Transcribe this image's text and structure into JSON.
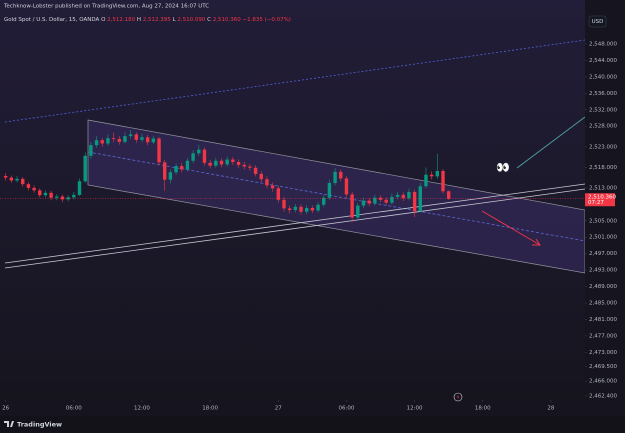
{
  "header": "Techknow-Lobster published on TradingView.com, Aug 27, 2024 16:07 UTC",
  "chart_data": {
    "type": "candlestick",
    "title": "Gold Spot / U.S. Dollar, 15, OANDA",
    "ohlc_legend": [
      {
        "key": "O",
        "label": "2,512.180"
      },
      {
        "key": "H",
        "label": "2,512.395"
      },
      {
        "key": "L",
        "label": "2,510.090"
      },
      {
        "key": "C",
        "label": "2,510.360"
      }
    ],
    "change_label": "−1.835 (−0.07%)",
    "currency": "USD",
    "x": [
      0,
      0.5,
      1,
      1.5,
      2,
      2.5,
      3,
      3.5,
      4,
      4.5,
      5,
      5.5,
      6,
      6.5,
      7,
      7.5,
      8,
      8.5,
      9,
      9.5,
      10,
      10.5,
      11,
      11.5,
      12,
      12.5,
      13,
      13.5,
      14,
      14.5,
      15,
      15.5,
      16,
      16.5,
      17,
      17.5,
      18,
      18.5,
      19,
      19.5,
      20,
      20.5,
      21,
      21.5,
      22,
      22.5,
      23,
      23.5,
      24,
      24.5,
      25,
      25.5,
      26,
      26.5,
      27,
      27.5,
      28,
      28.5,
      29,
      29.5,
      30,
      30.5,
      31,
      31.5,
      32,
      32.5,
      33,
      33.5,
      34,
      34.5,
      35,
      35.5,
      36,
      36.5,
      37,
      37.5,
      38,
      38.5,
      39
    ],
    "candles": [
      [
        2515.9,
        2516.6,
        2514.8,
        2515.5
      ],
      [
        2515.5,
        2516.0,
        2514.2,
        2514.8
      ],
      [
        2514.8,
        2515.9,
        2514.3,
        2515.2
      ],
      [
        2515.2,
        2515.6,
        2513.3,
        2513.9
      ],
      [
        2513.9,
        2514.4,
        2512.4,
        2513.0
      ],
      [
        2513.0,
        2513.6,
        2511.8,
        2512.4
      ],
      [
        2512.4,
        2512.9,
        2510.6,
        2511.2
      ],
      [
        2511.2,
        2512.4,
        2510.7,
        2511.8
      ],
      [
        2511.8,
        2512.3,
        2510.0,
        2510.6
      ],
      [
        2510.6,
        2511.5,
        2510.0,
        2510.9
      ],
      [
        2510.9,
        2511.4,
        2509.5,
        2510.2
      ],
      [
        2510.2,
        2511.2,
        2509.7,
        2510.7
      ],
      [
        2510.7,
        2512.0,
        2510.2,
        2511.3
      ],
      [
        2511.3,
        2515.3,
        2511.0,
        2514.6
      ],
      [
        2514.6,
        2521.6,
        2514.2,
        2520.8
      ],
      [
        2520.8,
        2524.2,
        2520.1,
        2523.4
      ],
      [
        2523.4,
        2525.6,
        2522.8,
        2524.6
      ],
      [
        2524.6,
        2525.2,
        2523.0,
        2523.8
      ],
      [
        2523.8,
        2526.0,
        2523.2,
        2525.1
      ],
      [
        2525.1,
        2526.4,
        2524.1,
        2524.9
      ],
      [
        2524.9,
        2525.6,
        2523.5,
        2524.2
      ],
      [
        2524.2,
        2526.5,
        2523.8,
        2525.6
      ],
      [
        2525.6,
        2527.1,
        2525.0,
        2526.0
      ],
      [
        2526.0,
        2526.5,
        2524.0,
        2524.7
      ],
      [
        2524.7,
        2526.2,
        2524.1,
        2525.3
      ],
      [
        2525.3,
        2525.9,
        2523.4,
        2524.1
      ],
      [
        2524.1,
        2525.7,
        2523.6,
        2525.0
      ],
      [
        2525.0,
        2525.4,
        2518.5,
        2519.2
      ],
      [
        2519.2,
        2519.8,
        2512.3,
        2515.0
      ],
      [
        2515.0,
        2517.5,
        2514.1,
        2516.8
      ],
      [
        2516.8,
        2519.0,
        2516.2,
        2518.3
      ],
      [
        2518.3,
        2519.1,
        2516.8,
        2517.5
      ],
      [
        2517.5,
        2520.3,
        2517.0,
        2519.6
      ],
      [
        2519.6,
        2522.2,
        2519.0,
        2521.4
      ],
      [
        2521.4,
        2523.5,
        2520.8,
        2522.3
      ],
      [
        2522.3,
        2522.9,
        2518.4,
        2519.1
      ],
      [
        2519.1,
        2519.8,
        2517.7,
        2518.4
      ],
      [
        2518.4,
        2520.3,
        2517.9,
        2519.6
      ],
      [
        2519.6,
        2520.2,
        2518.0,
        2518.7
      ],
      [
        2518.7,
        2520.6,
        2518.2,
        2519.9
      ],
      [
        2519.9,
        2520.5,
        2518.6,
        2519.3
      ],
      [
        2519.3,
        2519.9,
        2517.9,
        2518.6
      ],
      [
        2518.6,
        2519.3,
        2517.5,
        2518.2
      ],
      [
        2518.2,
        2518.8,
        2517.2,
        2517.9
      ],
      [
        2517.9,
        2518.5,
        2515.8,
        2516.4
      ],
      [
        2516.4,
        2517.0,
        2514.4,
        2515.1
      ],
      [
        2515.1,
        2515.8,
        2512.9,
        2513.6
      ],
      [
        2513.6,
        2514.3,
        2512.1,
        2512.9
      ],
      [
        2512.9,
        2513.5,
        2509.4,
        2510.1
      ],
      [
        2510.1,
        2510.8,
        2507.2,
        2508.0
      ],
      [
        2508.0,
        2508.7,
        2506.8,
        2507.6
      ],
      [
        2507.6,
        2509.1,
        2507.0,
        2508.4
      ],
      [
        2508.4,
        2509.0,
        2506.5,
        2507.2
      ],
      [
        2507.2,
        2508.8,
        2506.6,
        2508.1
      ],
      [
        2508.1,
        2508.7,
        2506.9,
        2507.5
      ],
      [
        2507.5,
        2509.6,
        2507.0,
        2508.9
      ],
      [
        2508.9,
        2511.3,
        2508.3,
        2510.6
      ],
      [
        2510.6,
        2515.0,
        2510.1,
        2514.2
      ],
      [
        2514.2,
        2517.8,
        2513.6,
        2516.9
      ],
      [
        2516.9,
        2517.5,
        2514.6,
        2515.3
      ],
      [
        2515.3,
        2515.9,
        2510.7,
        2511.4
      ],
      [
        2511.4,
        2512.0,
        2504.6,
        2505.8
      ],
      [
        2505.8,
        2509.4,
        2505.2,
        2508.7
      ],
      [
        2508.7,
        2510.6,
        2508.1,
        2509.9
      ],
      [
        2509.9,
        2510.5,
        2508.5,
        2509.2
      ],
      [
        2509.2,
        2511.3,
        2508.7,
        2510.6
      ],
      [
        2510.6,
        2511.2,
        2509.5,
        2510.1
      ],
      [
        2510.1,
        2510.7,
        2508.8,
        2509.4
      ],
      [
        2509.4,
        2511.6,
        2508.9,
        2510.8
      ],
      [
        2510.8,
        2512.1,
        2510.2,
        2511.3
      ],
      [
        2511.3,
        2511.9,
        2509.8,
        2510.5
      ],
      [
        2510.5,
        2512.8,
        2510.0,
        2512.0
      ],
      [
        2512.0,
        2512.5,
        2505.9,
        2507.3
      ],
      [
        2507.3,
        2514.2,
        2507.0,
        2513.4
      ],
      [
        2513.4,
        2518.0,
        2512.9,
        2516.2
      ],
      [
        2516.2,
        2517.0,
        2515.0,
        2515.8
      ],
      [
        2515.8,
        2521.3,
        2515.2,
        2517.1
      ],
      [
        2517.1,
        2517.6,
        2511.6,
        2512.18
      ],
      [
        2512.18,
        2512.395,
        2510.09,
        2510.36
      ]
    ],
    "up_color": "#089981",
    "down_color": "#f23645",
    "xlim": [
      -0.5,
      51
    ],
    "xticks": [
      {
        "value": 0,
        "label": "26"
      },
      {
        "value": 6,
        "label": "06:00"
      },
      {
        "value": 12,
        "label": "12:00"
      },
      {
        "value": 18,
        "label": "18:00"
      },
      {
        "value": 24,
        "label": "27"
      },
      {
        "value": 30,
        "label": "06:00"
      },
      {
        "value": 36,
        "label": "12:00"
      },
      {
        "value": 42,
        "label": "18:00"
      },
      {
        "value": 48,
        "label": "28"
      }
    ],
    "ylim": [
      2461.4,
      2558.7
    ],
    "yticks": [
      {
        "value": 2548,
        "label": "2,548.000"
      },
      {
        "value": 2544,
        "label": "2,544.000"
      },
      {
        "value": 2540,
        "label": "2,540.000"
      },
      {
        "value": 2536,
        "label": "2,536.000"
      },
      {
        "value": 2532,
        "label": "2,532.000"
      },
      {
        "value": 2528,
        "label": "2,528.000"
      },
      {
        "value": 2523,
        "label": "2,523.000"
      },
      {
        "value": 2518,
        "label": "2,518.000"
      },
      {
        "value": 2513,
        "label": "2,513.000"
      },
      {
        "value": 2505,
        "label": "2,505.000"
      },
      {
        "value": 2501,
        "label": "2,501.000"
      },
      {
        "value": 2497,
        "label": "2,497.000"
      },
      {
        "value": 2493,
        "label": "2,493.000"
      },
      {
        "value": 2489,
        "label": "2,489.000"
      },
      {
        "value": 2485,
        "label": "2,485.000"
      },
      {
        "value": 2481,
        "label": "2,481.000"
      },
      {
        "value": 2477,
        "label": "2,477.000"
      },
      {
        "value": 2473,
        "label": "2,473.000"
      },
      {
        "value": 2469.5,
        "label": "2,469.500"
      },
      {
        "value": 2466,
        "label": "2,466.000"
      },
      {
        "value": 2462.4,
        "label": "2,462.400"
      }
    ],
    "last_price_label": "2,510.360",
    "countdown": "07:27",
    "annotation": "👀"
  },
  "footer": {
    "logo": "TradingView"
  }
}
